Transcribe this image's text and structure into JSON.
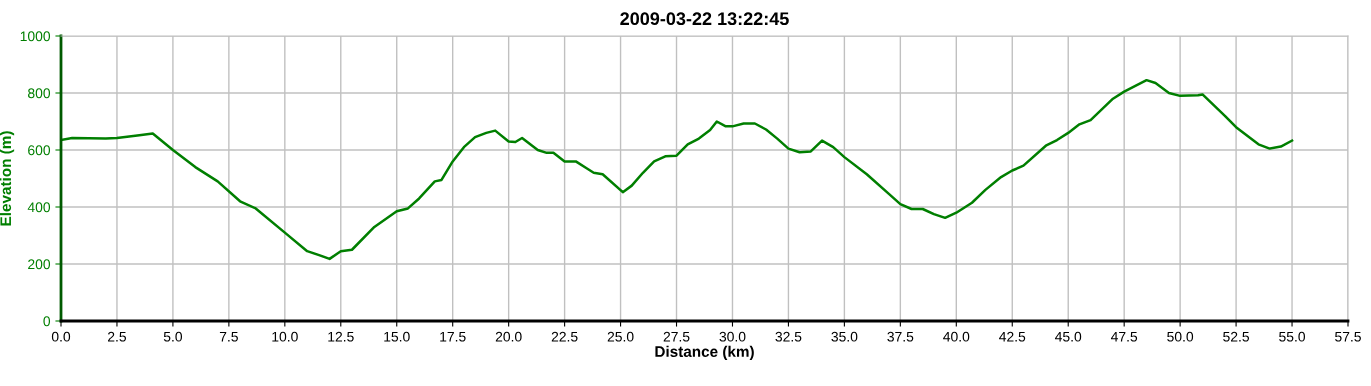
{
  "chart_data": {
    "type": "line",
    "title": "2009-03-22 13:22:45",
    "xlabel": "Distance (km)",
    "ylabel": "Elevation (m)",
    "xlim": [
      0,
      57.5
    ],
    "xticks": [
      {
        "value": 0,
        "label": "0.0"
      },
      {
        "value": 2.5,
        "label": "2.5"
      },
      {
        "value": 5,
        "label": "5.0"
      },
      {
        "value": 7.5,
        "label": "7.5"
      },
      {
        "value": 10,
        "label": "10.0"
      },
      {
        "value": 12.5,
        "label": "12.5"
      },
      {
        "value": 15,
        "label": "15.0"
      },
      {
        "value": 17.5,
        "label": "17.5"
      },
      {
        "value": 20,
        "label": "20.0"
      },
      {
        "value": 22.5,
        "label": "22.5"
      },
      {
        "value": 25,
        "label": "25.0"
      },
      {
        "value": 27.5,
        "label": "27.5"
      },
      {
        "value": 30,
        "label": "30.0"
      },
      {
        "value": 32.5,
        "label": "32.5"
      },
      {
        "value": 35,
        "label": "35.0"
      },
      {
        "value": 37.5,
        "label": "37.5"
      },
      {
        "value": 40,
        "label": "40.0"
      },
      {
        "value": 42.5,
        "label": "42.5"
      },
      {
        "value": 45,
        "label": "45.0"
      },
      {
        "value": 47.5,
        "label": "47.5"
      },
      {
        "value": 50,
        "label": "50.0"
      },
      {
        "value": 52.5,
        "label": "52.5"
      },
      {
        "value": 55,
        "label": "55.0"
      },
      {
        "value": 57.5,
        "label": "57.5"
      }
    ],
    "ylim": [
      0,
      1000
    ],
    "yticks": [
      0,
      200,
      400,
      600,
      800,
      1000
    ],
    "grid": true,
    "marker": "none",
    "line_style": "solid",
    "series": [
      {
        "color": "#007f00",
        "x": [
          0,
          0.5,
          2,
          2.5,
          3.5,
          4.1,
          5,
          6,
          7,
          8,
          8.7,
          10,
          11,
          11.5,
          12,
          12.5,
          13,
          14,
          15,
          15.5,
          16,
          16.7,
          17,
          17.5,
          18,
          18.5,
          19,
          19.4,
          20,
          20.3,
          20.6,
          21.3,
          21.7,
          22,
          22.5,
          23,
          23.5,
          23.8,
          24.2,
          25.1,
          25.5,
          26,
          26.5,
          27,
          27.5,
          28,
          28.5,
          29,
          29.3,
          29.7,
          30,
          30.5,
          31,
          31.5,
          32,
          32.5,
          33,
          33.5,
          34,
          34.5,
          35,
          36,
          37,
          37.5,
          38,
          38.5,
          39,
          39.5,
          40,
          40.7,
          41.3,
          42,
          42.5,
          43,
          44,
          44.5,
          45,
          45.5,
          46,
          47,
          47.5,
          48,
          48.5,
          48.9,
          49.5,
          50,
          50.8,
          51,
          52,
          52.5,
          53.5,
          54,
          54.5,
          55
        ],
        "values": [
          635,
          642,
          640,
          642,
          652,
          658,
          600,
          540,
          490,
          420,
          395,
          310,
          245,
          232,
          218,
          245,
          250,
          330,
          385,
          395,
          430,
          490,
          495,
          560,
          610,
          645,
          660,
          668,
          630,
          628,
          642,
          600,
          590,
          590,
          560,
          560,
          535,
          520,
          515,
          452,
          475,
          520,
          560,
          578,
          580,
          620,
          640,
          670,
          700,
          683,
          683,
          693,
          693,
          672,
          640,
          605,
          592,
          595,
          633,
          610,
          575,
          515,
          445,
          410,
          393,
          393,
          375,
          362,
          380,
          415,
          460,
          505,
          528,
          545,
          615,
          635,
          660,
          690,
          705,
          780,
          805,
          825,
          845,
          835,
          800,
          790,
          792,
          795,
          720,
          680,
          620,
          605,
          612,
          633
        ]
      }
    ]
  }
}
